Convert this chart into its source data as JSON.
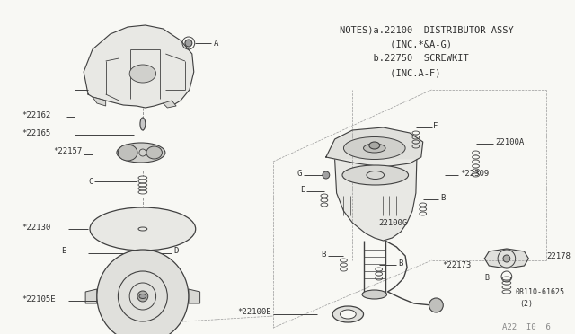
{
  "background_color": "#f8f8f4",
  "line_color": "#404040",
  "text_color": "#303030",
  "notes_lines": [
    "NOTES)a.22100  DISTRIBUTOR ASSY",
    "         (INC.*&A-G)",
    "      b.22750  SCREWKIT",
    "         (INC.A-F)"
  ],
  "footer_text": "A22  I0  6",
  "font_size_label": 6.5,
  "font_size_notes": 7.5,
  "font_size_footer": 6.5
}
